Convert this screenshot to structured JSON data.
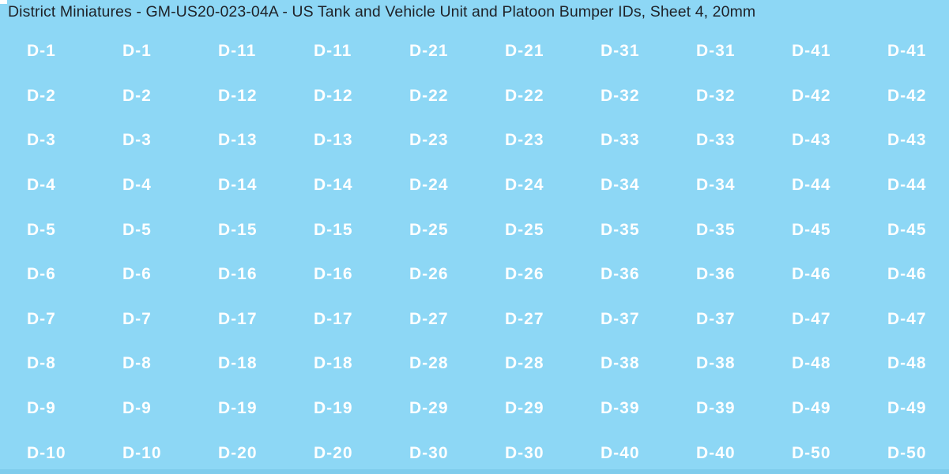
{
  "sheet": {
    "title": "District Miniatures - GM-US20-023-04A - US Tank and Vehicle Unit and Platoon Bumper IDs, Sheet 4, 20mm"
  },
  "colors": {
    "background": "#8dd7f5",
    "bottom-strip": "#7fccec",
    "title-text": "#1f2228",
    "label-text": "#ffffff"
  },
  "grid": {
    "rows": [
      [
        "D-1",
        "D-1",
        "D-11",
        "D-11",
        "D-21",
        "D-21",
        "D-31",
        "D-31",
        "D-41",
        "D-41"
      ],
      [
        "D-2",
        "D-2",
        "D-12",
        "D-12",
        "D-22",
        "D-22",
        "D-32",
        "D-32",
        "D-42",
        "D-42"
      ],
      [
        "D-3",
        "D-3",
        "D-13",
        "D-13",
        "D-23",
        "D-23",
        "D-33",
        "D-33",
        "D-43",
        "D-43"
      ],
      [
        "D-4",
        "D-4",
        "D-14",
        "D-14",
        "D-24",
        "D-24",
        "D-34",
        "D-34",
        "D-44",
        "D-44"
      ],
      [
        "D-5",
        "D-5",
        "D-15",
        "D-15",
        "D-25",
        "D-25",
        "D-35",
        "D-35",
        "D-45",
        "D-45"
      ],
      [
        "D-6",
        "D-6",
        "D-16",
        "D-16",
        "D-26",
        "D-26",
        "D-36",
        "D-36",
        "D-46",
        "D-46"
      ],
      [
        "D-7",
        "D-7",
        "D-17",
        "D-17",
        "D-27",
        "D-27",
        "D-37",
        "D-37",
        "D-47",
        "D-47"
      ],
      [
        "D-8",
        "D-8",
        "D-18",
        "D-18",
        "D-28",
        "D-28",
        "D-38",
        "D-38",
        "D-48",
        "D-48"
      ],
      [
        "D-9",
        "D-9",
        "D-19",
        "D-19",
        "D-29",
        "D-29",
        "D-39",
        "D-39",
        "D-49",
        "D-49"
      ],
      [
        "D-10",
        "D-10",
        "D-20",
        "D-20",
        "D-30",
        "D-30",
        "D-40",
        "D-40",
        "D-50",
        "D-50"
      ]
    ]
  }
}
